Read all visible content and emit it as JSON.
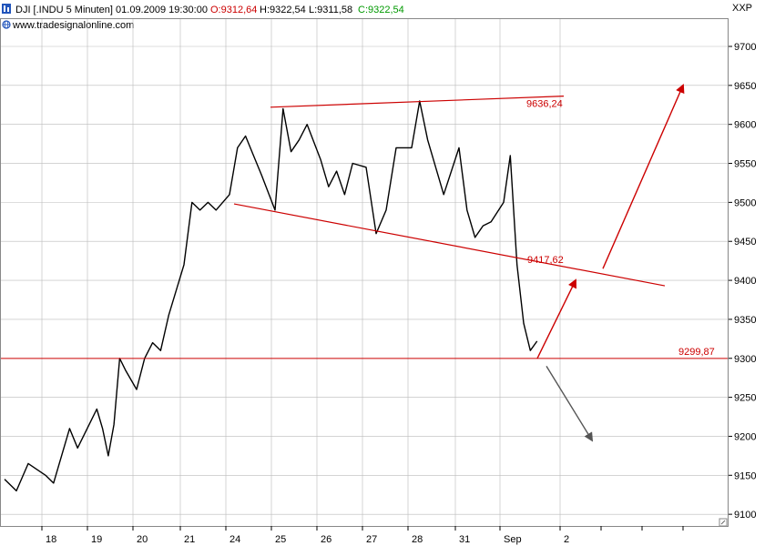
{
  "header": {
    "symbol": "DJI [.INDU  5 Minuten] 01.09.2009 19:30:00",
    "open": "O:9312,64",
    "high": "H:9322,54",
    "low": "L:9311,58",
    "close": "C:9322,54",
    "watermark": "www.tradesignalonline.com",
    "corner_label": "XXP"
  },
  "colors": {
    "price": "#000000",
    "level": "#cc0000",
    "open": "#cc0000",
    "close": "#009900",
    "grid": "#bbbbbb",
    "down_arrow": "#555555",
    "icon_blue": "#2255bb"
  },
  "chart_data": {
    "type": "line",
    "title": "DJI [.INDU  5 Minuten] 01.09.2009 19:30:00",
    "xlabel": "",
    "ylabel": "",
    "ylim": [
      9085,
      9735
    ],
    "y_ticks": [
      9100,
      9150,
      9200,
      9250,
      9300,
      9350,
      9400,
      9450,
      9500,
      9550,
      9600,
      9650,
      9700
    ],
    "x_ticks": [
      "18",
      "19",
      "20",
      "21",
      "24",
      "25",
      "26",
      "27",
      "28",
      "31",
      "Sep",
      "2"
    ],
    "grid": true,
    "series": [
      {
        "name": "DJI",
        "x": [
          "17.08",
          "17.08",
          "17.08",
          "18.08",
          "18.08",
          "18.08",
          "18.08",
          "18.08",
          "19.08",
          "19.08",
          "19.08",
          "19.08",
          "19.08",
          "19.08",
          "19.08",
          "20.08",
          "20.08",
          "20.08",
          "20.08",
          "20.08",
          "21.08",
          "21.08",
          "21.08",
          "21.08",
          "21.08",
          "24.08",
          "24.08",
          "24.08",
          "24.08",
          "24.08",
          "25.08",
          "25.08",
          "25.08",
          "25.08",
          "25.08",
          "26.08",
          "26.08",
          "26.08",
          "26.08",
          "26.08",
          "27.08",
          "27.08",
          "27.08",
          "27.08",
          "28.08",
          "28.08",
          "28.08",
          "28.08",
          "28.08",
          "31.08",
          "31.08",
          "31.08",
          "31.08",
          "31.08",
          "01.09",
          "01.09",
          "01.09",
          "01.09",
          "01.09",
          "01.09"
        ],
        "values": [
          9145,
          9130,
          9165,
          9150,
          9140,
          9175,
          9210,
          9185,
          9220,
          9235,
          9210,
          9175,
          9215,
          9300,
          9285,
          9260,
          9300,
          9320,
          9310,
          9355,
          9420,
          9500,
          9490,
          9500,
          9490,
          9510,
          9570,
          9585,
          9560,
          9535,
          9490,
          9620,
          9565,
          9580,
          9600,
          9555,
          9520,
          9540,
          9510,
          9550,
          9545,
          9460,
          9490,
          9570,
          9570,
          9630,
          9580,
          9545,
          9510,
          9570,
          9490,
          9455,
          9470,
          9475,
          9500,
          9560,
          9420,
          9345,
          9310,
          9322
        ]
      }
    ],
    "annotations": [
      {
        "type": "trendline",
        "color": "#cc0000",
        "label": "9636,24",
        "from": {
          "x": "25.08",
          "y": 9622
        },
        "to": {
          "x": "02.09",
          "y": 9636.24
        }
      },
      {
        "type": "trendline",
        "color": "#cc0000",
        "label": "9417,62",
        "from": {
          "x": "24.08",
          "y": 9498
        },
        "to": {
          "x": "02.09",
          "y": 9417.62
        }
      },
      {
        "type": "horizontal",
        "color": "#cc0000",
        "label": "9299,87",
        "y": 9299.87
      },
      {
        "type": "arrow",
        "color": "#cc0000",
        "direction": "up",
        "from": {
          "x": "01.09",
          "y": 9300
        },
        "to": {
          "x": "02.09",
          "y": 9400
        }
      },
      {
        "type": "arrow",
        "color": "#cc0000",
        "direction": "up",
        "from": {
          "x": "02.09",
          "y": 9415
        },
        "to": {
          "x": "03.09",
          "y": 9650
        }
      },
      {
        "type": "arrow",
        "color": "#555555",
        "direction": "down",
        "from": {
          "x": "01.09",
          "y": 9290
        },
        "to": {
          "x": "02.09",
          "y": 9195
        }
      }
    ]
  }
}
